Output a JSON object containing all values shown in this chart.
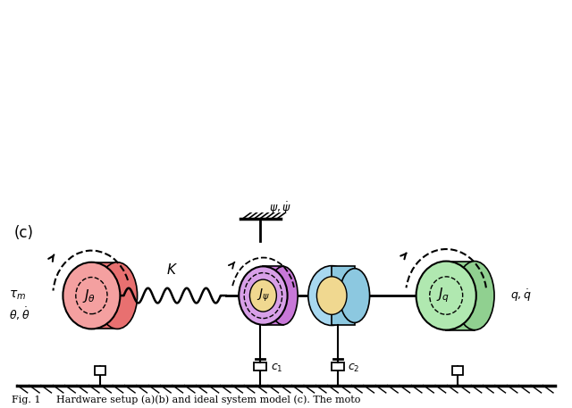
{
  "title": "Fig. 1",
  "caption": "Hardware setup (a)(b) and ideal system model (c). The moto",
  "bg_color": "#ffffff",
  "photo_a_placeholder": true,
  "photo_b_placeholder": true,
  "diagram_colors": {
    "J_theta_fill": "#f4a0a0",
    "J_theta_edge": "#c04040",
    "J_theta_side_fill": "#e87070",
    "J_psi_fill": "#d8a0e8",
    "J_psi_side_fill": "#c878d8",
    "J_psi_inner_fill": "#f0d890",
    "J_q_fill": "#b0e8b0",
    "J_q_edge": "#50a050",
    "J_q_side_fill": "#90d090",
    "bearing_fill": "#a8d8f0",
    "bearing_inner_fill": "#f0d890",
    "spring_color": "#000000",
    "ground_color": "#000000",
    "damper_color": "#000000",
    "wall_color": "#404040"
  },
  "labels": {
    "J_theta": "J_\\theta",
    "J_psi": "J_\\psi",
    "J_q": "J_q",
    "K": "K",
    "c1": "c_1",
    "c2": "c_2",
    "tau_m": "\\tau_m",
    "theta": "\\theta, \\dot{\\theta}",
    "psi": "\\psi, \\dot{\\psi}",
    "q": "q, \\dot{q}"
  }
}
